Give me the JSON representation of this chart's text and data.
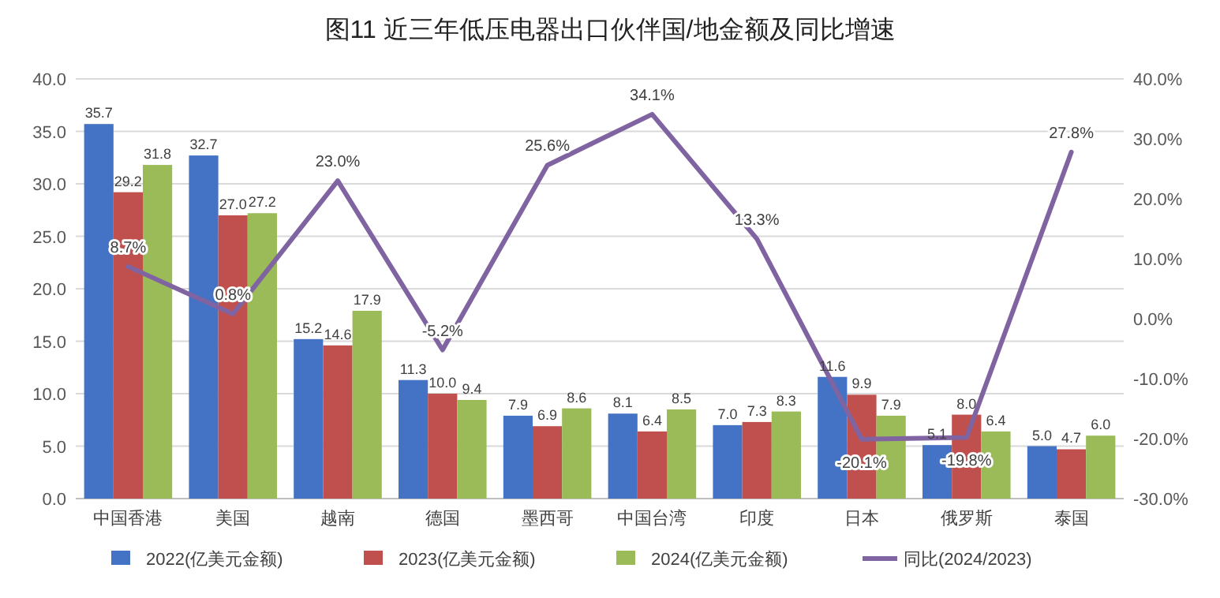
{
  "chart_data": {
    "type": "bar",
    "title": "图11 近三年低压电器出口伙伴国/地金额及同比增速",
    "categories": [
      "中国香港",
      "美国",
      "越南",
      "德国",
      "墨西哥",
      "中国台湾",
      "印度",
      "日本",
      "俄罗斯",
      "泰国"
    ],
    "series": [
      {
        "name": "2022(亿美元金额)",
        "color": "#4472c4",
        "values": [
          35.7,
          32.7,
          15.2,
          11.3,
          7.9,
          8.1,
          7.0,
          11.6,
          5.1,
          5.0
        ],
        "value_labels": [
          "35.7",
          "32.7",
          "15.2",
          "11.3",
          "7.9",
          "8.1",
          "7.0",
          "11.6",
          "5.1",
          "5.0"
        ]
      },
      {
        "name": "2023(亿美元金额)",
        "color": "#c0504d",
        "values": [
          29.2,
          27.0,
          14.6,
          10.0,
          6.9,
          6.4,
          7.3,
          9.9,
          8.0,
          4.7
        ],
        "value_labels": [
          "29.2",
          "27.0",
          "14.6",
          "10.0",
          "6.9",
          "6.4",
          "7.3",
          "9.9",
          "8.0",
          "4.7"
        ]
      },
      {
        "name": "2024(亿美元金额)",
        "color": "#9bbb59",
        "values": [
          31.8,
          27.2,
          17.9,
          9.4,
          8.6,
          8.5,
          8.3,
          7.9,
          6.4,
          6.0
        ],
        "value_labels": [
          "31.8",
          "27.2",
          "17.9",
          "9.4",
          "8.6",
          "8.5",
          "8.3",
          "7.9",
          "6.4",
          "6.0"
        ]
      },
      {
        "name": "同比(2024/2023)",
        "color": "#8064a2",
        "type": "line",
        "axis": "y2",
        "values": [
          8.7,
          0.8,
          23.0,
          -5.2,
          25.6,
          34.1,
          13.3,
          -20.1,
          -19.8,
          27.8
        ],
        "value_labels": [
          "8.7%",
          "0.8%",
          "23.0%",
          "-5.2%",
          "25.6%",
          "34.1%",
          "13.3%",
          "-20.1%",
          "-19.8%",
          "27.8%"
        ]
      }
    ],
    "ylim": [
      0,
      40
    ],
    "yticks": [
      {
        "value": 0,
        "label": "0.0"
      },
      {
        "value": 5,
        "label": "5.0"
      },
      {
        "value": 10,
        "label": "10.0"
      },
      {
        "value": 15,
        "label": "15.0"
      },
      {
        "value": 20,
        "label": "20.0"
      },
      {
        "value": 25,
        "label": "25.0"
      },
      {
        "value": 30,
        "label": "30.0"
      },
      {
        "value": 35,
        "label": "35.0"
      },
      {
        "value": 40,
        "label": "40.0"
      }
    ],
    "y2lim": [
      -30,
      40
    ],
    "y2ticks": [
      {
        "value": -30,
        "label": "-30.0%"
      },
      {
        "value": -20,
        "label": "-20.0%"
      },
      {
        "value": -10,
        "label": "-10.0%"
      },
      {
        "value": 0,
        "label": "0.0%"
      },
      {
        "value": 10,
        "label": "10.0%"
      },
      {
        "value": 20,
        "label": "20.0%"
      },
      {
        "value": 30,
        "label": "30.0%"
      },
      {
        "value": 40,
        "label": "40.0%"
      }
    ],
    "grid": "y",
    "legend": "bottom",
    "marker": "none",
    "line_style": "solid"
  }
}
